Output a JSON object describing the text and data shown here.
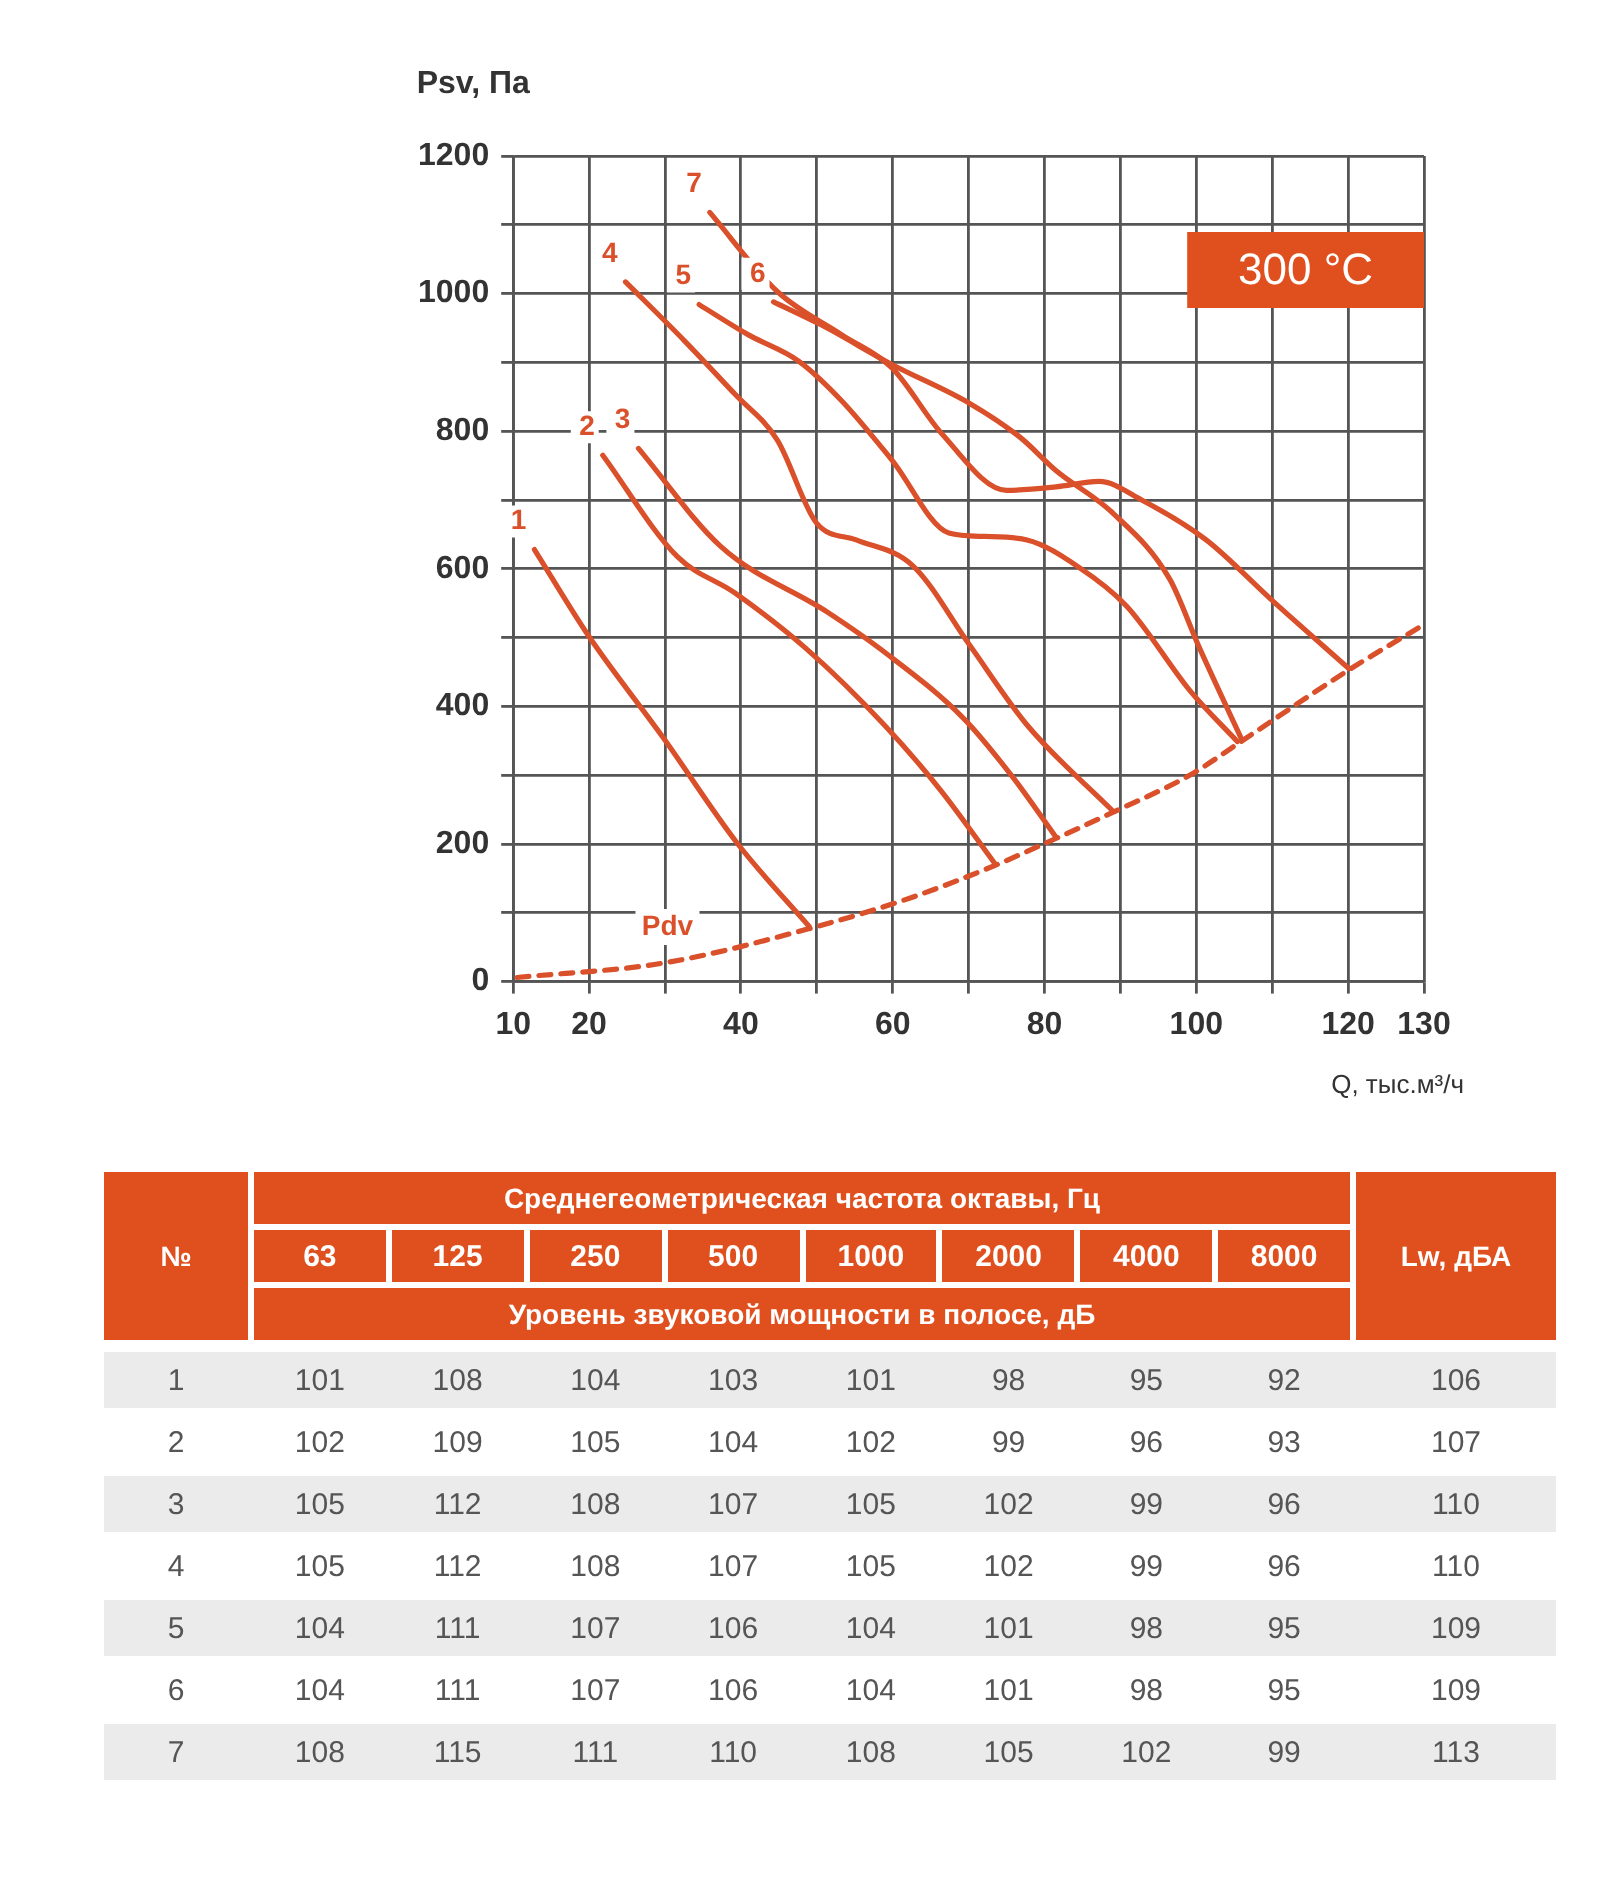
{
  "chart_data": [
    {
      "type": "line",
      "xlabel": "Q, тыс.м³/ч",
      "ylabel": "Psv, Па",
      "annotations": [
        "300 °C"
      ],
      "xlim": [
        10,
        130
      ],
      "ylim": [
        0,
        1200
      ],
      "xticks": [
        10,
        20,
        {
          "value": 30,
          "label": null
        },
        40,
        {
          "value": 50,
          "label": null
        },
        60,
        {
          "value": 70,
          "label": null
        },
        80,
        {
          "value": 90,
          "label": null
        },
        100,
        {
          "value": 110,
          "label": null
        },
        120,
        130
      ],
      "yticks": [
        0,
        {
          "value": 100,
          "label": null
        },
        200,
        {
          "value": 300,
          "label": null
        },
        400,
        {
          "value": 500,
          "label": null
        },
        600,
        {
          "value": 700,
          "label": null
        },
        800,
        {
          "value": 900,
          "label": null
        },
        1000,
        {
          "value": 1100,
          "label": null
        },
        1200
      ],
      "grid": true,
      "legend": false,
      "marker": "none",
      "series": [
        {
          "name": "1",
          "color": "#d9502a",
          "x": [
            12.8,
            19.9,
            29.8,
            39.6,
            49.0
          ],
          "values": [
            628,
            503,
            354,
            200,
            80
          ]
        },
        {
          "name": "2",
          "color": "#d9502a",
          "x": [
            21.8,
            31.6,
            39.2,
            48.6,
            58.9,
            66.4,
            73.5
          ],
          "values": [
            765,
            618,
            565,
            484,
            373,
            277,
            171
          ]
        },
        {
          "name": "3",
          "color": "#d9502a",
          "x": [
            26.5,
            37.3,
            51.4,
            58.9,
            69.3,
            75.9,
            81.5
          ],
          "values": [
            775,
            633,
            537,
            479,
            383,
            296,
            210
          ]
        },
        {
          "name": "4",
          "color": "#d9502a",
          "x": [
            24.8,
            32.6,
            39.2,
            44.8,
            50.0,
            55.2,
            62.7,
            70.2,
            77.7,
            89.0
          ],
          "values": [
            1017,
            931,
            854,
            787,
            666,
            642,
            604,
            488,
            373,
            248
          ]
        },
        {
          "name": "5",
          "color": "#d9502a",
          "x": [
            34.5,
            41.0,
            47.6,
            53.3,
            59.9,
            67.4,
            72.1,
            77.7,
            84.3,
            90.8,
            99.3,
            105.4
          ],
          "values": [
            984,
            940,
            902,
            844,
            758,
            652,
            647,
            642,
            604,
            546,
            421,
            349
          ]
        },
        {
          "name": "6",
          "color": "#d9502a",
          "x": [
            44.3,
            50.5,
            59.9,
            70.2,
            76.8,
            81.5,
            89.0,
            96.5,
            100.3,
            105.9
          ],
          "values": [
            988,
            955,
            897,
            840,
            791,
            743,
            681,
            585,
            488,
            354
          ]
        },
        {
          "name": "7",
          "color": "#d9502a",
          "x": [
            35.9,
            44.8,
            53.3,
            59.9,
            66.5,
            75.0,
            81.5,
            87.2,
            92.8,
            101.3,
            109.8,
            120.1
          ],
          "values": [
            1118,
            1003,
            940,
            892,
            796,
            714,
            719,
            727,
            700,
            642,
            556,
            455
          ]
        },
        {
          "name": "Pdv",
          "color": "#d9502a",
          "line_style": "dashed",
          "x": [
            10.5,
            29.8,
            49.0,
            62.7,
            73.5,
            81.5,
            89.0,
            99.3,
            105.9,
            120.1,
            130
          ],
          "values": [
            6,
            27,
            77,
            123,
            169,
            208,
            246,
            301,
            349,
            453,
            519
          ]
        }
      ]
    },
    {
      "type": "heatmap",
      "title": "Среднегеометрическая частота октавы, Гц",
      "subtitle": "Уровень звуковой мощности в полосе, дБ",
      "ylabel": "№",
      "categories": [
        "63",
        "125",
        "250",
        "500",
        "1000",
        "2000",
        "4000",
        "8000",
        "Lw, дБА"
      ],
      "y_categories": [
        "1",
        "2",
        "3",
        "4",
        "5",
        "6",
        "7"
      ],
      "data_labels": true,
      "cells": [
        [
          101,
          108,
          104,
          103,
          101,
          98,
          95,
          92,
          106
        ],
        [
          102,
          109,
          105,
          104,
          102,
          99,
          96,
          93,
          107
        ],
        [
          105,
          112,
          108,
          107,
          105,
          102,
          99,
          96,
          110
        ],
        [
          105,
          112,
          108,
          107,
          105,
          102,
          99,
          96,
          110
        ],
        [
          104,
          111,
          107,
          106,
          104,
          101,
          98,
          95,
          109
        ],
        [
          104,
          111,
          107,
          106,
          104,
          101,
          98,
          95,
          109
        ],
        [
          108,
          115,
          111,
          110,
          108,
          105,
          102,
          99,
          113
        ]
      ]
    }
  ]
}
